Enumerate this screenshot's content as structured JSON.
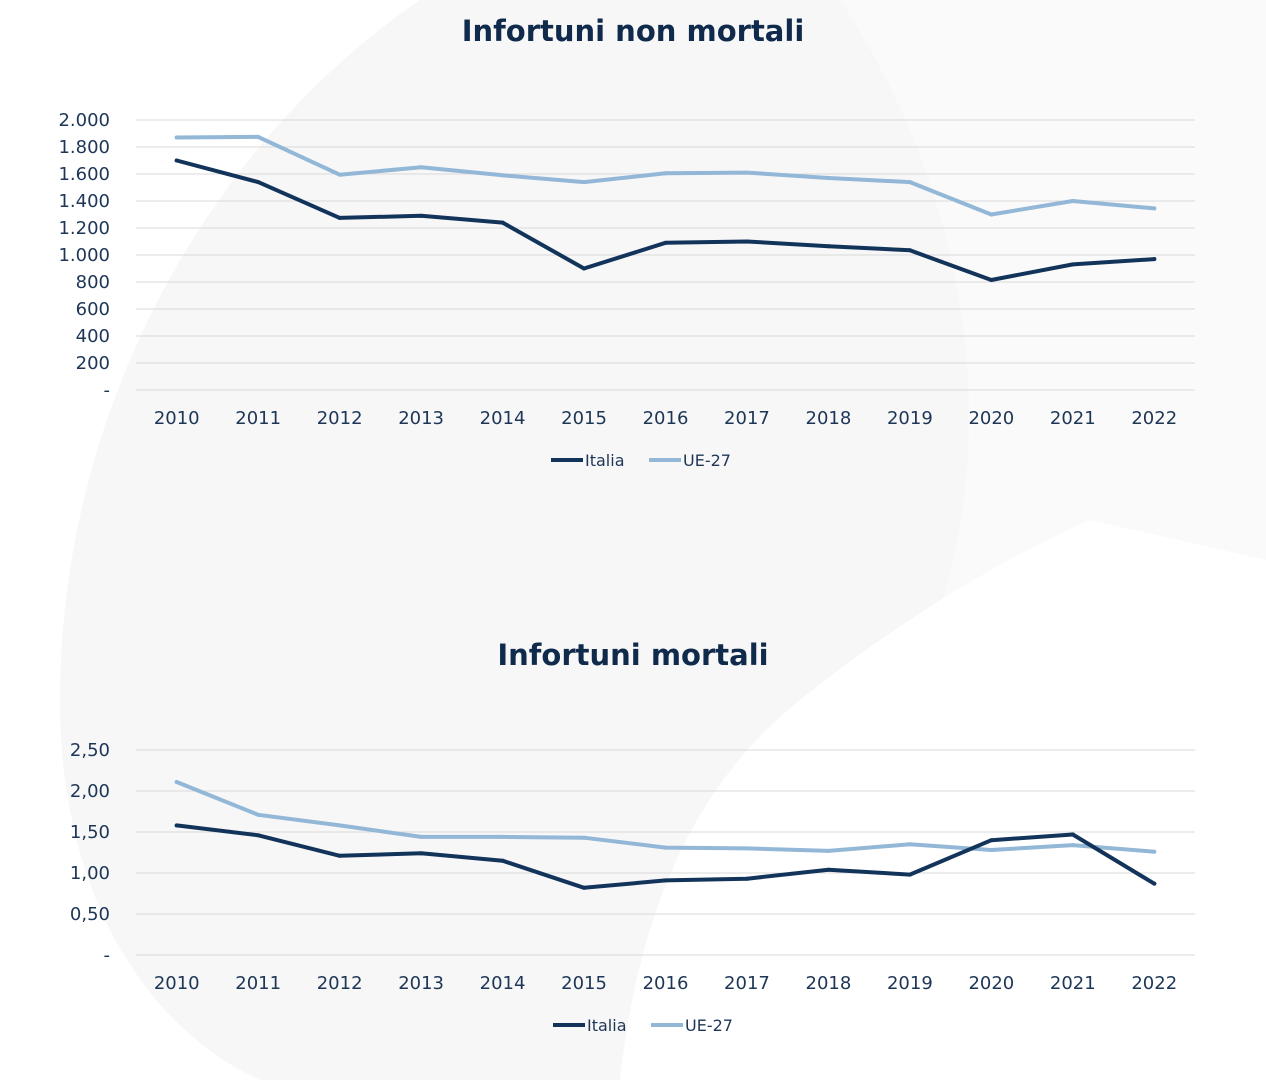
{
  "colors": {
    "italia": "#13345a",
    "ue27": "#93b7d6",
    "title": "#0f2a4a",
    "grid": "#d9d9d9"
  },
  "chart_data": [
    {
      "type": "line",
      "title": "Infortuni non mortali",
      "x": [
        "2010",
        "2011",
        "2012",
        "2013",
        "2014",
        "2015",
        "2016",
        "2017",
        "2018",
        "2019",
        "2020",
        "2021",
        "2022"
      ],
      "series": [
        {
          "name": "Italia",
          "values": [
            1700,
            1540,
            1275,
            1290,
            1240,
            900,
            1090,
            1100,
            1065,
            1035,
            815,
            930,
            970
          ]
        },
        {
          "name": "UE-27",
          "values": [
            1870,
            1875,
            1595,
            1650,
            1590,
            1540,
            1605,
            1610,
            1570,
            1540,
            1300,
            1400,
            1345
          ]
        }
      ],
      "y_ticks": [
        "-",
        "200",
        "400",
        "600",
        "800",
        "1.000",
        "1.200",
        "1.400",
        "1.600",
        "1.800",
        "2.000"
      ],
      "ylim": [
        0,
        2000
      ],
      "xlabel": "",
      "ylabel": "",
      "grid": true,
      "legend": "bottom-center"
    },
    {
      "type": "line",
      "title": "Infortuni mortali",
      "x": [
        "2010",
        "2011",
        "2012",
        "2013",
        "2014",
        "2015",
        "2016",
        "2017",
        "2018",
        "2019",
        "2020",
        "2021",
        "2022"
      ],
      "series": [
        {
          "name": "Italia",
          "values": [
            1.58,
            1.46,
            1.21,
            1.24,
            1.15,
            0.82,
            0.91,
            0.93,
            1.04,
            0.98,
            1.4,
            1.47,
            0.87
          ]
        },
        {
          "name": "UE-27",
          "values": [
            2.11,
            1.71,
            1.58,
            1.44,
            1.44,
            1.43,
            1.31,
            1.3,
            1.27,
            1.35,
            1.28,
            1.34,
            1.26
          ]
        }
      ],
      "y_ticks": [
        "-",
        "0,50",
        "1,00",
        "1,50",
        "2,00",
        "2,50"
      ],
      "ylim": [
        0,
        2.5
      ],
      "xlabel": "",
      "ylabel": "",
      "grid": true,
      "legend": "bottom-center"
    }
  ]
}
